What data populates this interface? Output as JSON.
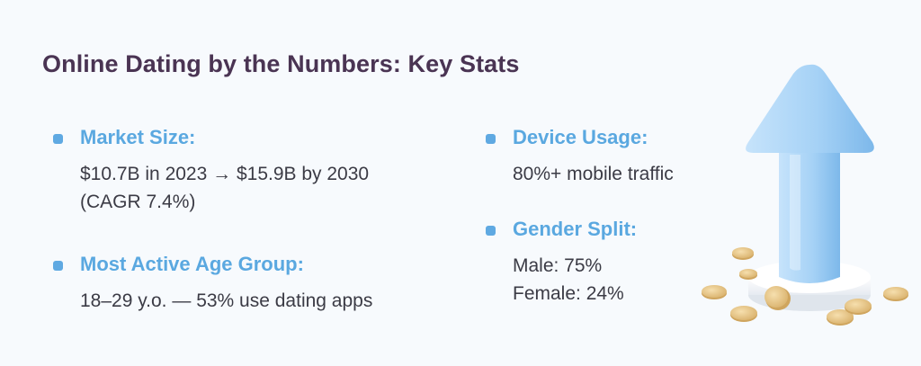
{
  "title": "Online Dating by the Numbers: Key Stats",
  "stats": [
    {
      "label": "Market Size:",
      "lines": [
        "$10.7B in 2023 → $15.9B by 2030",
        "(CAGR 7.4%)"
      ]
    },
    {
      "label": "Most Active Age Group:",
      "lines": [
        "18–29 y.o. — 53% use dating apps"
      ]
    },
    {
      "label": "Device Usage:",
      "lines": [
        "80%+ mobile traffic"
      ]
    },
    {
      "label": "Gender Split:",
      "lines": [
        "Male: 75%",
        "Female: 24%"
      ]
    }
  ],
  "illustration": {
    "icon": "up-arrow-with-coins",
    "arrow_color": "#a9d4f7",
    "coin_color": "#e9c98a",
    "pedestal_color": "#ffffff"
  },
  "colors": {
    "title": "#4a3453",
    "label": "#5aa8e0",
    "body": "#3b3b45",
    "bullet": "#5fa9e2",
    "background": "#f7fafd"
  }
}
